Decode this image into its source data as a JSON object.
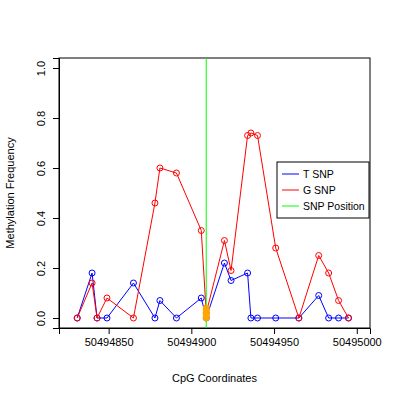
{
  "chart_data": {
    "type": "line",
    "x_label": "CpG Coordinates",
    "y_label": "Methylation Frequency",
    "x": [
      50494831,
      50494840,
      50494843,
      50494849,
      50494865,
      50494878,
      50494881,
      50494891,
      50494906,
      50494909,
      50494920,
      50494924,
      50494934,
      50494936,
      50494940,
      50494951,
      50494965,
      50494977,
      50494983,
      50494989,
      50494995
    ],
    "series": [
      {
        "name": "T SNP",
        "color": "#0000ff",
        "marker": "circle",
        "line_style": "solid",
        "values": [
          0,
          0.18,
          0,
          0,
          0.14,
          0,
          0.07,
          0,
          0.08,
          0,
          0.22,
          0.15,
          0.18,
          0,
          0,
          0,
          0,
          0.09,
          0,
          0,
          0
        ]
      },
      {
        "name": "G SNP",
        "color": "#ff0000",
        "marker": "circle",
        "line_style": "solid",
        "values": [
          0,
          0.14,
          0,
          0.08,
          0,
          0.46,
          0.6,
          0.58,
          0.35,
          0.02,
          0.31,
          0.19,
          0.73,
          0.74,
          0.73,
          0.28,
          0,
          0.25,
          0.18,
          0.07,
          0
        ]
      },
      {
        "name": "SNP Position",
        "color": "#00ff00",
        "type": "vline",
        "x": [
          50494909
        ]
      },
      {
        "color": "#ffa500",
        "type": "scatter",
        "marker": "filled_circle",
        "x": [
          50494909,
          50494909,
          50494909,
          50494909,
          50494909,
          50494909
        ],
        "values": [
          0,
          0.008,
          0.016,
          0.024,
          0.032,
          0.04
        ]
      }
    ],
    "xlim": [
      50494820,
      50495008
    ],
    "ylim": [
      -0.04,
      1.04
    ],
    "xticks": [
      50494850,
      50494900,
      50494950,
      50495000
    ],
    "yticks": [
      {
        "value": 0,
        "label": "0.0"
      },
      0.2,
      0.4,
      0.6,
      0.8,
      {
        "value": 1,
        "label": "1.0"
      }
    ],
    "legend": "right",
    "grid": false
  }
}
